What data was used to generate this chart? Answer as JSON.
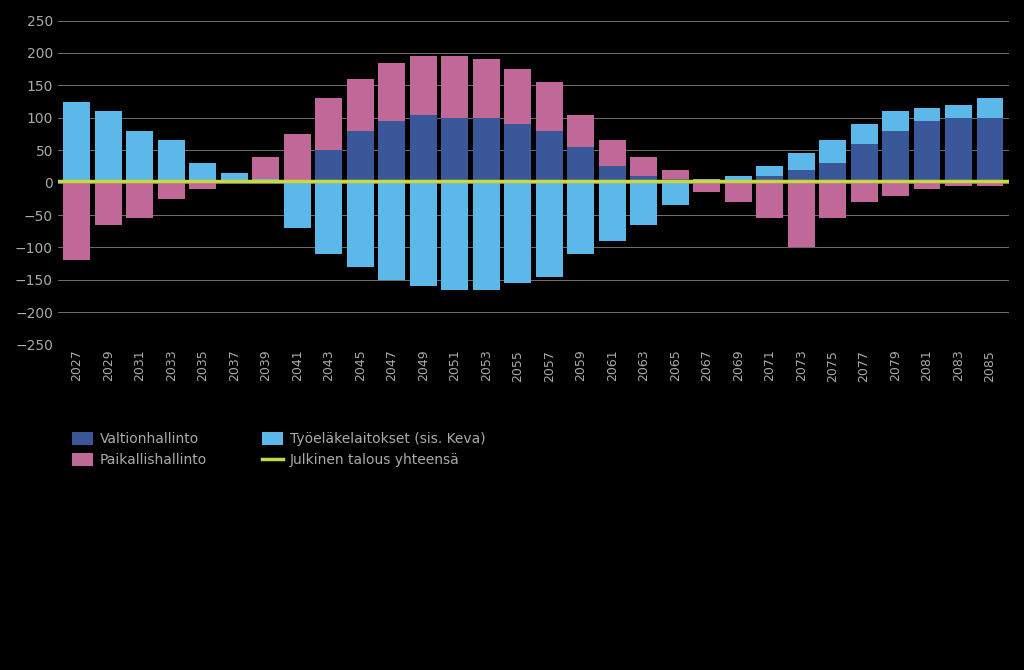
{
  "years": [
    2027,
    2029,
    2031,
    2033,
    2035,
    2037,
    2039,
    2041,
    2043,
    2045,
    2047,
    2049,
    2051,
    2053,
    2055,
    2057,
    2059,
    2061,
    2063,
    2065,
    2067,
    2069,
    2071,
    2073,
    2075,
    2077,
    2079,
    2081,
    2083,
    2085
  ],
  "valtionhallinto": [
    0,
    0,
    0,
    0,
    0,
    0,
    0,
    0,
    50,
    80,
    95,
    105,
    100,
    100,
    90,
    80,
    55,
    25,
    10,
    5,
    0,
    0,
    10,
    20,
    30,
    60,
    80,
    95,
    100,
    100
  ],
  "paikallishallinto": [
    -120,
    -65,
    -55,
    -25,
    -10,
    0,
    40,
    75,
    130,
    160,
    185,
    195,
    195,
    190,
    175,
    155,
    105,
    65,
    40,
    20,
    -15,
    -30,
    -55,
    -100,
    -55,
    -30,
    -20,
    -10,
    -5,
    -5
  ],
  "tyoelake": [
    125,
    110,
    80,
    65,
    30,
    15,
    5,
    -70,
    -110,
    -130,
    -150,
    -160,
    -165,
    -165,
    -155,
    -145,
    -110,
    -90,
    -65,
    -35,
    5,
    10,
    25,
    45,
    65,
    90,
    110,
    115,
    120,
    130
  ],
  "color_valtio": "#3A5799",
  "color_paikallis": "#C06898",
  "color_tyoelake": "#5BB8E8",
  "color_julkinen": "#C8D840",
  "ylim": [
    -250,
    250
  ],
  "yticks": [
    -250,
    -200,
    -150,
    -100,
    -50,
    0,
    50,
    100,
    150,
    200,
    250
  ],
  "legend_labels": [
    "Valtionhallinto",
    "Paikallishallinto",
    "Työeläkelaitokset (sis. Keva)",
    "Julkinen talous yhteensä"
  ],
  "bg_color": "#000000",
  "text_color": "#AAAAAA",
  "grid_color": "#FFFFFF"
}
